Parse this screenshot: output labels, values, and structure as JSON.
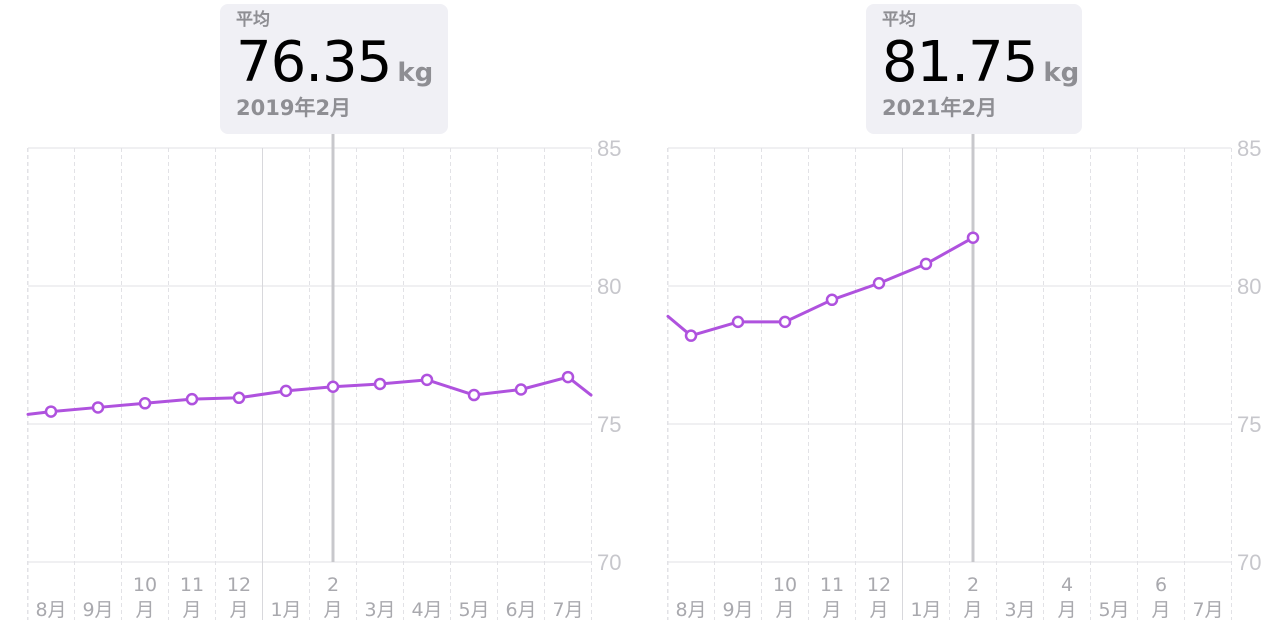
{
  "colors": {
    "line": "#af52de",
    "grid": "#e2e2e6",
    "axis_label": "#c7c7cc",
    "cursor": "#c8c8cc",
    "tooltip_bg": "#f0f0f5"
  },
  "chart_data": [
    {
      "type": "line",
      "tooltip": {
        "label": "平均",
        "value": "76.35",
        "unit": "kg",
        "date": "2019年2月"
      },
      "ylim": [
        70,
        85
      ],
      "yticks": [
        "85",
        "80",
        "75",
        "70"
      ],
      "xticks": [
        {
          "line1": "",
          "line2": "8月"
        },
        {
          "line1": "",
          "line2": "9月"
        },
        {
          "line1": "10",
          "line2": "月"
        },
        {
          "line1": "11",
          "line2": "月"
        },
        {
          "line1": "12",
          "line2": "月"
        },
        {
          "line1": "",
          "line2": "1月"
        },
        {
          "line1": "2",
          "line2": "月"
        },
        {
          "line1": "",
          "line2": "3月"
        },
        {
          "line1": "",
          "line2": "4月"
        },
        {
          "line1": "",
          "line2": "5月"
        },
        {
          "line1": "",
          "line2": "6月"
        },
        {
          "line1": "",
          "line2": "7月"
        }
      ],
      "series": [
        {
          "values": [
            75.45,
            75.6,
            75.75,
            75.9,
            75.95,
            76.2,
            76.35,
            76.45,
            76.6,
            76.05,
            76.25,
            76.7
          ]
        }
      ],
      "edge_left": 75.35,
      "edge_right": 76.05,
      "selected_index": 6
    },
    {
      "type": "line",
      "tooltip": {
        "label": "平均",
        "value": "81.75",
        "unit": "kg",
        "date": "2021年2月"
      },
      "ylim": [
        70,
        85
      ],
      "yticks": [
        "85",
        "80",
        "75",
        "70"
      ],
      "xticks": [
        {
          "line1": "",
          "line2": "8月"
        },
        {
          "line1": "",
          "line2": "9月"
        },
        {
          "line1": "10",
          "line2": "月"
        },
        {
          "line1": "11",
          "line2": "月"
        },
        {
          "line1": "12",
          "line2": "月"
        },
        {
          "line1": "",
          "line2": "1月"
        },
        {
          "line1": "2",
          "line2": "月"
        },
        {
          "line1": "",
          "line2": "3月"
        },
        {
          "line1": "4",
          "line2": "月"
        },
        {
          "line1": "",
          "line2": "5月"
        },
        {
          "line1": "6",
          "line2": "月"
        },
        {
          "line1": "",
          "line2": "7月"
        }
      ],
      "series": [
        {
          "values": [
            78.2,
            78.7,
            78.7,
            79.5,
            80.1,
            80.8,
            81.75,
            null,
            null,
            null,
            null,
            null
          ]
        }
      ],
      "edge_left": 78.9,
      "edge_right": null,
      "selected_index": 6
    }
  ]
}
